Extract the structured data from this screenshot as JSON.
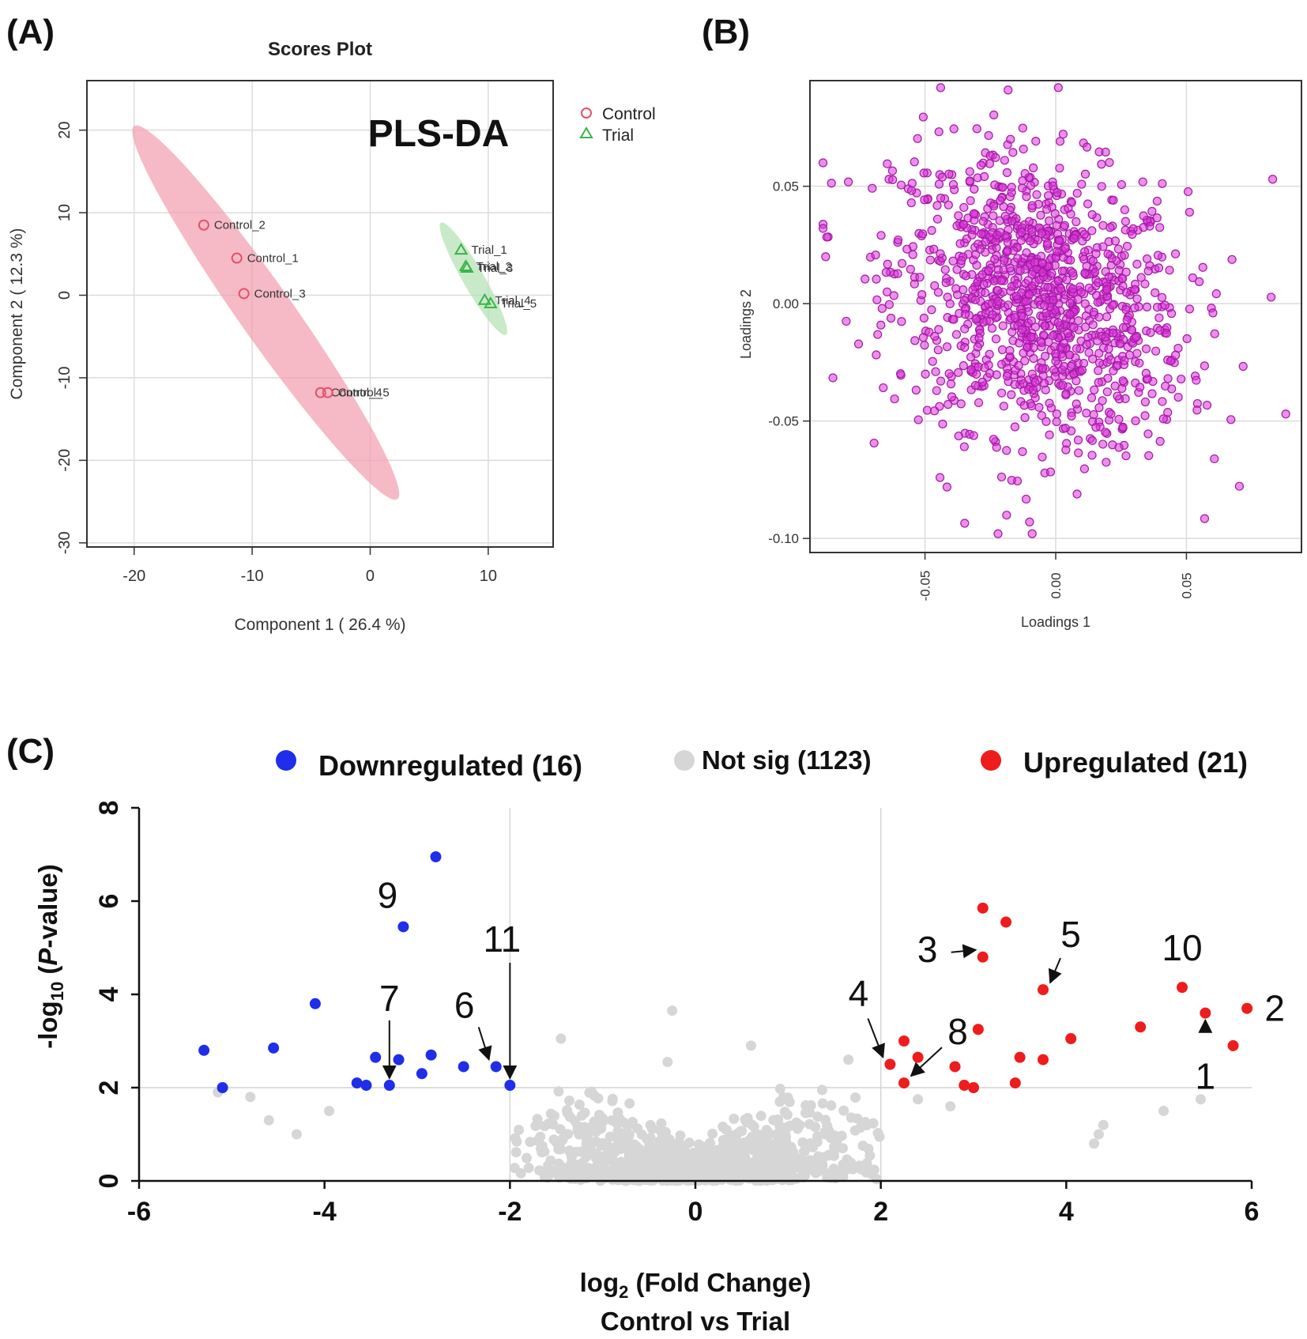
{
  "figure": {
    "title": "Scores Plot"
  },
  "chart_data": [
    {
      "panel": "(A)",
      "type": "scatter",
      "title": "Scores Plot",
      "annotation": "PLS-DA",
      "xlabel": "Component 1 ( 26.4 %)",
      "ylabel": "Component 2 ( 12.3 %)",
      "xlim": [
        -24,
        15.5
      ],
      "ylim": [
        -30.5,
        26
      ],
      "xticks": [
        -20,
        -10,
        0,
        10
      ],
      "yticks": [
        20,
        10,
        0,
        -10,
        -20,
        -30
      ],
      "grid": true,
      "legend_position": "top-right",
      "series": [
        {
          "name": "Control",
          "marker": "circle",
          "color": "#e8506a",
          "points": [
            {
              "label": "Control_1",
              "x": -11.3,
              "y": 4.5
            },
            {
              "label": "Control_2",
              "x": -14.1,
              "y": 8.5
            },
            {
              "label": "Control_3",
              "x": -10.7,
              "y": 0.2
            },
            {
              "label": "Control_4",
              "x": -4.2,
              "y": -11.8
            },
            {
              "label": "Control_5",
              "x": -3.6,
              "y": -11.8
            }
          ]
        },
        {
          "name": "Trial",
          "marker": "triangle",
          "color": "#3cb44b",
          "points": [
            {
              "label": "Trial_1",
              "x": 7.7,
              "y": 5.5
            },
            {
              "label": "Trial_2",
              "x": 8.1,
              "y": 3.5
            },
            {
              "label": "Trial_3",
              "x": 8.2,
              "y": 3.3
            },
            {
              "label": "Trial_4",
              "x": 9.7,
              "y": -0.6
            },
            {
              "label": "Trial_5",
              "x": 10.2,
              "y": -1.0
            }
          ]
        }
      ],
      "ellipses": [
        {
          "group": "Control",
          "color": "#f2a3b3",
          "center": [
            -9,
            -2
          ],
          "ends": [
            [
              -20,
              20.5
            ],
            [
              2.3,
              -24.7
            ]
          ],
          "half_width": 2.3
        },
        {
          "group": "Trial",
          "color": "#b7e3b7",
          "center": [
            8.9,
            2.2
          ],
          "ends": [
            [
              6,
              8.8
            ],
            [
              11.5,
              -4.8
            ]
          ],
          "half_width": 0.9
        }
      ]
    },
    {
      "panel": "(B)",
      "type": "scatter",
      "xlabel": "Loadings 1",
      "ylabel": "Loadings 2",
      "xlim": [
        -0.094,
        0.094
      ],
      "ylim": [
        -0.106,
        0.095
      ],
      "xticks": [
        "-0.05",
        "0.00",
        "0.05"
      ],
      "yticks": [
        "0.05",
        "0.00",
        "-0.05",
        "-0.10"
      ],
      "grid": true,
      "color": "#dd33dd",
      "n_points": 1160,
      "notable_points": [
        {
          "x": 0.001,
          "y": 0.092
        },
        {
          "x": -0.044,
          "y": 0.092
        },
        {
          "x": -0.01,
          "y": -0.093
        },
        {
          "x": -0.009,
          "y": -0.098
        },
        {
          "x": 0.088,
          "y": -0.047
        },
        {
          "x": -0.088,
          "y": 0.02
        },
        {
          "x": 0.083,
          "y": 0.053
        }
      ],
      "distribution": {
        "center_x": -0.006,
        "center_y": 0.001,
        "sd_x": 0.028,
        "sd_y": 0.03
      }
    },
    {
      "panel": "(C)",
      "type": "scatter",
      "subtype": "volcano",
      "xlabel_main": "log",
      "xlabel_sub": "2",
      "xlabel_rest": " (Fold Change)",
      "xlabel_line2": "Control vs Trial",
      "ylabel_pre": "-log",
      "ylabel_sub": "10",
      "ylabel_open": " (",
      "ylabel_italic": "P",
      "ylabel_rest": "-value)",
      "xlim": [
        -6,
        6
      ],
      "ylim": [
        0,
        8
      ],
      "xticks": [
        -6,
        -4,
        -2,
        0,
        2,
        4,
        6
      ],
      "yticks": [
        0,
        2,
        4,
        6,
        8
      ],
      "reference_lines": {
        "x": [
          -2,
          2
        ],
        "y": 2
      },
      "legend": [
        {
          "label": "Downregulated (16)",
          "color": "#1f2ee8"
        },
        {
          "label": "Not sig (1123)",
          "color": "#d6d6d6"
        },
        {
          "label": "Upregulated (21)",
          "color": "#ee1c1c"
        }
      ],
      "downregulated": [
        {
          "x": -5.3,
          "y": 2.8
        },
        {
          "x": -5.1,
          "y": 2.0
        },
        {
          "x": -4.55,
          "y": 2.85
        },
        {
          "x": -4.1,
          "y": 3.8
        },
        {
          "x": -3.65,
          "y": 2.1
        },
        {
          "x": -3.55,
          "y": 2.05
        },
        {
          "x": -3.45,
          "y": 2.65
        },
        {
          "x": -3.3,
          "y": 2.05
        },
        {
          "x": -3.2,
          "y": 2.6
        },
        {
          "x": -3.15,
          "y": 5.45
        },
        {
          "x": -2.95,
          "y": 2.3
        },
        {
          "x": -2.85,
          "y": 2.7
        },
        {
          "x": -2.8,
          "y": 6.95
        },
        {
          "x": -2.5,
          "y": 2.45
        },
        {
          "x": -2.15,
          "y": 2.45
        },
        {
          "x": -2.0,
          "y": 2.05
        }
      ],
      "upregulated": [
        {
          "x": 2.1,
          "y": 2.5
        },
        {
          "x": 2.25,
          "y": 2.1
        },
        {
          "x": 2.25,
          "y": 3.0
        },
        {
          "x": 2.4,
          "y": 2.65
        },
        {
          "x": 2.8,
          "y": 2.45
        },
        {
          "x": 2.9,
          "y": 2.05
        },
        {
          "x": 3.0,
          "y": 2.0
        },
        {
          "x": 3.05,
          "y": 3.25
        },
        {
          "x": 3.1,
          "y": 4.8
        },
        {
          "x": 3.1,
          "y": 5.85
        },
        {
          "x": 3.35,
          "y": 5.55
        },
        {
          "x": 3.45,
          "y": 2.1
        },
        {
          "x": 3.5,
          "y": 2.65
        },
        {
          "x": 3.75,
          "y": 4.1
        },
        {
          "x": 3.75,
          "y": 2.6
        },
        {
          "x": 4.8,
          "y": 3.3
        },
        {
          "x": 5.25,
          "y": 4.15
        },
        {
          "x": 5.5,
          "y": 3.6
        },
        {
          "x": 5.95,
          "y": 3.7
        },
        {
          "x": 4.05,
          "y": 3.05
        },
        {
          "x": 5.8,
          "y": 2.9
        }
      ],
      "not_sig_count": 1123,
      "not_sig_sample": [
        {
          "x": -5.15,
          "y": 1.9
        },
        {
          "x": -4.8,
          "y": 1.8
        },
        {
          "x": -4.6,
          "y": 1.3
        },
        {
          "x": -4.3,
          "y": 1.0
        },
        {
          "x": -3.95,
          "y": 1.5
        },
        {
          "x": -1.45,
          "y": 3.05
        },
        {
          "x": -0.25,
          "y": 3.65
        },
        {
          "x": -0.3,
          "y": 2.55
        },
        {
          "x": 0.6,
          "y": 2.9
        },
        {
          "x": 1.65,
          "y": 2.6
        },
        {
          "x": 4.4,
          "y": 1.2
        },
        {
          "x": 4.35,
          "y": 1.0
        },
        {
          "x": 4.3,
          "y": 0.8
        },
        {
          "x": 5.05,
          "y": 1.5
        },
        {
          "x": 5.45,
          "y": 1.75
        },
        {
          "x": 2.4,
          "y": 1.75
        },
        {
          "x": 2.75,
          "y": 1.6
        }
      ],
      "annotations": [
        {
          "label": "1",
          "x": 5.5,
          "y": 3.6
        },
        {
          "label": "2",
          "x": 5.95,
          "y": 3.7
        },
        {
          "label": "3",
          "x": 3.1,
          "y": 4.8
        },
        {
          "label": "4",
          "x": 2.1,
          "y": 2.5
        },
        {
          "label": "5",
          "x": 3.75,
          "y": 4.1
        },
        {
          "label": "6",
          "x": -2.15,
          "y": 2.45
        },
        {
          "label": "7",
          "x": -3.3,
          "y": 2.05
        },
        {
          "label": "8",
          "x": 2.25,
          "y": 2.1
        },
        {
          "label": "9",
          "x": -3.15,
          "y": 5.45
        },
        {
          "label": "10",
          "x": 5.25,
          "y": 4.15
        },
        {
          "label": "11",
          "x": -2.0,
          "y": 2.05
        }
      ]
    }
  ]
}
